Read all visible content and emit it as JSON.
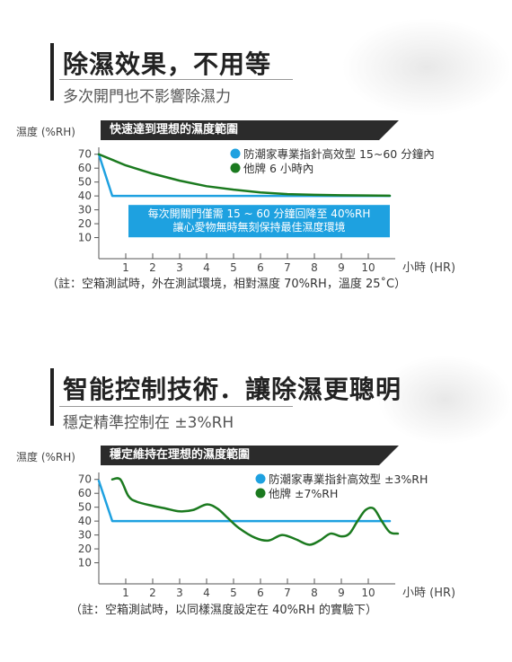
{
  "section1": {
    "title": "除濕效果，不用等",
    "subtitle": "多次開門也不影響除濕力",
    "note": "（註：空箱測試時，外在測試環境，相對濕度 70%RH，溫度 25˚C）"
  },
  "section2": {
    "title": "智能控制技術．讓除濕更聰明",
    "subtitle": "穩定精準控制在 ±3%RH",
    "note": "（註：空箱測試時，以同樣濕度設定在 40%RH 的實驗下）"
  },
  "colors": {
    "blue": "#1ea1e0",
    "green": "#1b7a1f",
    "tag": "#2b2b2b"
  },
  "chart_data": [
    {
      "type": "line",
      "title": "快速達到理想的濕度範圍",
      "ylabel": "濕度 (%RH)",
      "xlabel": "小時 (HR)",
      "xlim": [
        0,
        11
      ],
      "ylim": [
        0,
        75
      ],
      "yticks": [
        "10",
        "20",
        "30",
        "40",
        "50",
        "60",
        "70"
      ],
      "xticks": [
        "1",
        "2",
        "3",
        "4",
        "5",
        "6",
        "7",
        "8",
        "9",
        "10"
      ],
      "annotation": [
        "每次開關門僅需 15 ~ 60 分鐘回降至 40%RH",
        "讓心愛物無時無刻保持最佳濕度環境"
      ],
      "series": [
        {
          "name": "防潮家專業指針高效型 15~60 分鐘內",
          "color": "#1ea1e0",
          "x": [
            0,
            0.5,
            10.8
          ],
          "y": [
            70,
            40,
            40
          ]
        },
        {
          "name": "他牌 6 小時內",
          "color": "#1b7a1f",
          "x": [
            0,
            1,
            2,
            3,
            4,
            5,
            6,
            7,
            8,
            9,
            10,
            10.8
          ],
          "y": [
            70,
            62,
            56,
            51,
            47,
            44.5,
            42.5,
            41.3,
            40.8,
            40.5,
            40.3,
            40.2
          ]
        }
      ]
    },
    {
      "type": "line",
      "title": "穩定維持在理想的濕度範圍",
      "ylabel": "濕度 (%RH)",
      "xlabel": "小時 (HR)",
      "xlim": [
        0,
        11
      ],
      "ylim": [
        0,
        75
      ],
      "yticks": [
        "10",
        "20",
        "30",
        "40",
        "50",
        "60",
        "70"
      ],
      "xticks": [
        "1",
        "2",
        "3",
        "4",
        "5",
        "6",
        "7",
        "8",
        "9",
        "10"
      ],
      "series": [
        {
          "name": "防潮家專業指針高效型 ±3%RH",
          "color": "#1ea1e0",
          "x": [
            0,
            0.5,
            10.8
          ],
          "y": [
            69,
            40,
            40
          ]
        },
        {
          "name": "他牌 ±7%RH",
          "color": "#1b7a1f",
          "x": [
            0.5,
            0.8,
            1.1,
            1.4,
            2,
            2.5,
            3,
            3.5,
            4,
            4.4,
            4.8,
            5.2,
            5.8,
            6.3,
            6.8,
            7.3,
            7.8,
            8.2,
            8.6,
            9,
            9.3,
            9.6,
            9.9,
            10.2,
            10.5,
            10.8,
            11.1
          ],
          "y": [
            70,
            70,
            58,
            54,
            51,
            49,
            47,
            48,
            52,
            49,
            42,
            35,
            28,
            26,
            30,
            27,
            23,
            26,
            31,
            29,
            31,
            40,
            48,
            49,
            40,
            32,
            31
          ]
        }
      ]
    }
  ]
}
